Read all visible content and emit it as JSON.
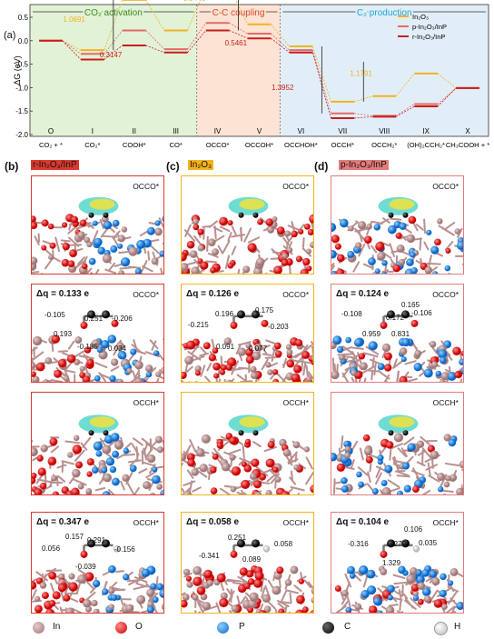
{
  "panel_a": {
    "label": "(a)",
    "stages": [
      "CO₂ activation",
      "C-C coupling",
      "C₂ production"
    ],
    "ylabel": "ΔG (eV)",
    "yticks": [
      "0.5",
      "0.0",
      "-0.5",
      "-1.0",
      "-1.5",
      "-2.0"
    ],
    "roman": [
      "O",
      "I",
      "II",
      "III",
      "IV",
      "V",
      "VI",
      "VII",
      "VIII",
      "IX",
      "X"
    ],
    "species": [
      "CO₂ + *",
      "CO₂*",
      "COOH*",
      "CO*",
      "OCCO*",
      "OCCOH*",
      "OCCHOH*",
      "OCCH*",
      "OCCH₂*",
      "(OH)₂CCH₂*",
      "CH₃COOH + *"
    ],
    "annotations": [
      "1.0691",
      "0.9446",
      "0.3147",
      "0.5461",
      "1.3952",
      "1.1791"
    ],
    "legend": [
      "In₂O₃",
      "p-In₂O₃/InP",
      "r-In₂O₃/InP"
    ],
    "colors": {
      "in2o3": "#F0B323",
      "p": "#E46A6A",
      "r": "#C81E1E",
      "stage1": "#E2F2D6",
      "stage2": "#FCE3D4",
      "stage3": "#E1EEF8"
    }
  },
  "chart_data": {
    "type": "line",
    "title": "",
    "ylabel": "ΔG (eV)",
    "ylim": [
      -2.0,
      0.5
    ],
    "categories": [
      "O",
      "I",
      "II",
      "III",
      "IV",
      "V",
      "VI",
      "VII",
      "VIII",
      "IX",
      "X"
    ],
    "series": [
      {
        "name": "In₂O₃",
        "values": [
          0.0,
          -0.2,
          0.87,
          0.22,
          1.15,
          0.35,
          -0.12,
          -1.3,
          -1.18,
          -0.7,
          -1.01
        ]
      },
      {
        "name": "p-In₂O₃/InP",
        "values": [
          0.0,
          -0.28,
          0.22,
          -0.18,
          0.38,
          0.15,
          -0.2,
          -1.55,
          -1.6,
          -1.35,
          -1.01
        ]
      },
      {
        "name": "r-In₂O₃/InP",
        "values": [
          0.0,
          -0.4,
          -0.1,
          -0.25,
          0.22,
          0.05,
          -0.25,
          -1.65,
          -1.62,
          -1.4,
          -1.01
        ]
      }
    ]
  },
  "col_b": {
    "label": "(b)",
    "title": "r-In₂O₃/InP",
    "color": "#D93A2E"
  },
  "col_c": {
    "label": "(c)",
    "title": "In₂O₃",
    "color": "#F3B31C"
  },
  "col_d": {
    "label": "(d)",
    "title": "p-In₂O₃/InP",
    "color": "#E37B7B"
  },
  "rows": {
    "occo": "OCCO*",
    "occh": "OCCH*"
  },
  "charges": {
    "b_occo": {
      "dq": "Δq = 0.133 e",
      "nums": [
        "-0.105",
        "0.251",
        "-0.206",
        "0.193",
        "-0.185",
        "0.034"
      ]
    },
    "c_occo": {
      "dq": "Δq = 0.126 e",
      "nums": [
        "0.196",
        "0.175",
        "-0.215",
        "-0.203",
        "0.091",
        "0.077"
      ]
    },
    "d_occo": {
      "dq": "Δq = 0.124 e",
      "nums": [
        "0.165",
        "-0.108",
        "0.172",
        "-0.106",
        "0.959",
        "0.831"
      ]
    },
    "b_occh": {
      "dq": "Δq = 0.347 e",
      "nums": [
        "0.157",
        "0.291",
        "0.056",
        "-0.156",
        "-0.039"
      ]
    },
    "c_occh": {
      "dq": "Δq = 0.058 e",
      "nums": [
        "0.251",
        "0.058",
        "-0.341",
        "0.089"
      ]
    },
    "d_occh": {
      "dq": "Δq = 0.104 e",
      "nums": [
        "0.106",
        "-0.316",
        "0.279",
        "0.035",
        "1.329"
      ]
    }
  },
  "legend_atoms": [
    "In",
    "O",
    "P",
    "C",
    "H"
  ]
}
